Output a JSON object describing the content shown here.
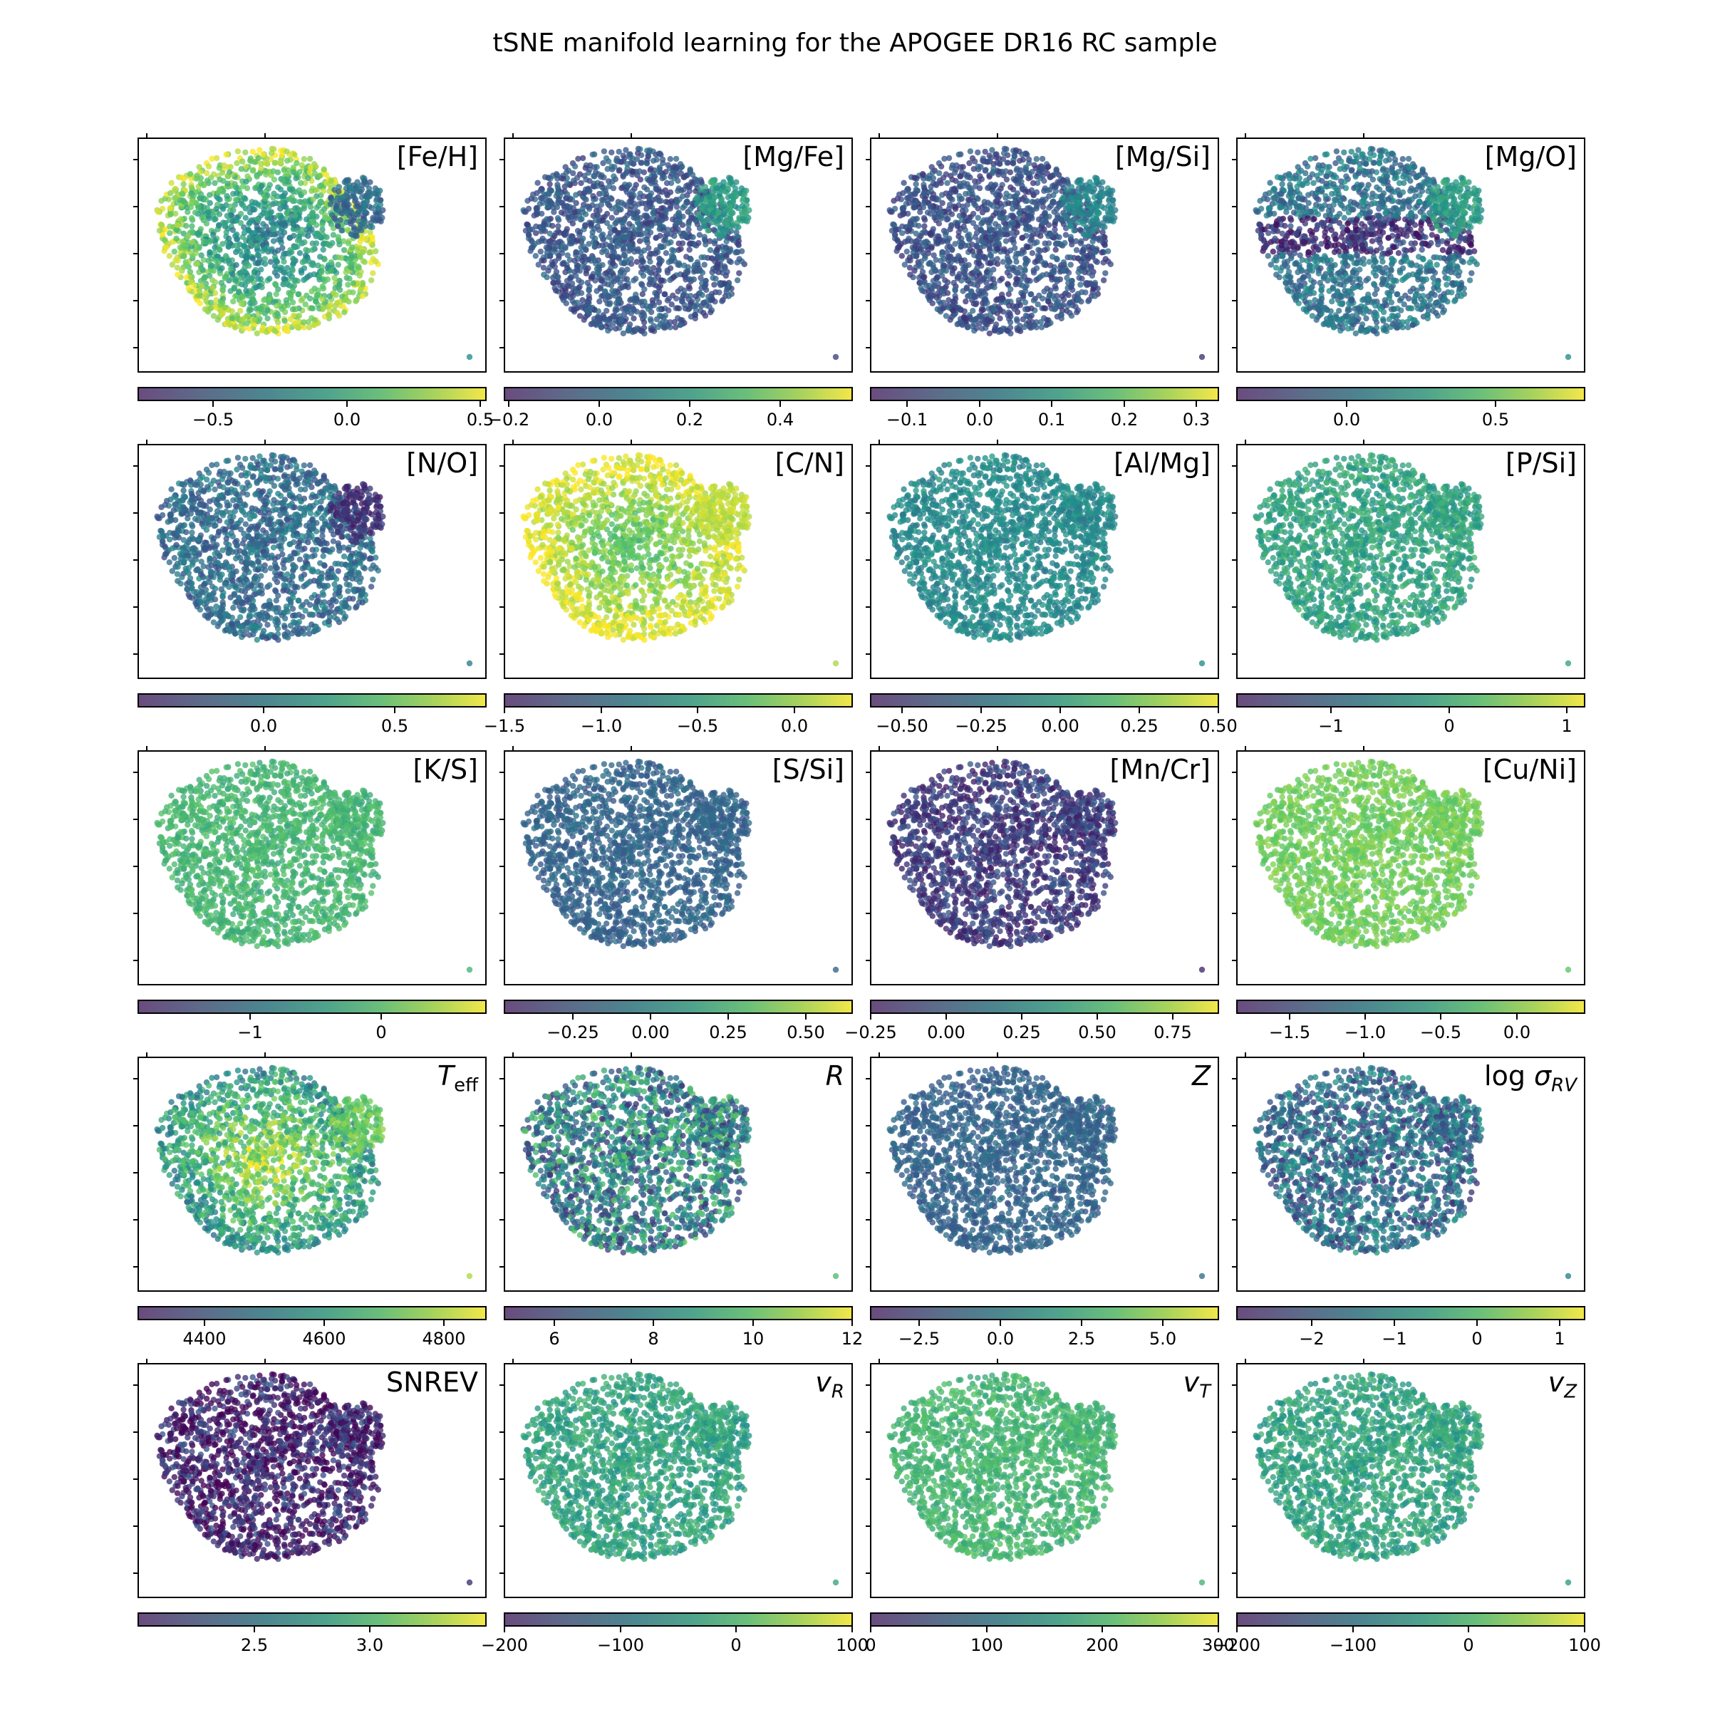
{
  "figure": {
    "title": "tSNE manifold learning for the APOGEE DR16 RC sample"
  },
  "colormap": [
    "#440154",
    "#3b528b",
    "#21918c",
    "#5ec962",
    "#fde725"
  ],
  "chart_data": [
    {
      "type": "scatter",
      "label": "[Fe/H]",
      "label_parts": [
        {
          "t": "[Fe/H]"
        }
      ],
      "colorbar": {
        "min": -0.78,
        "max": 0.52,
        "ticks": [
          "−0.5",
          "0.0",
          "0.5"
        ],
        "tick_values": [
          -0.5,
          0.0,
          0.5
        ]
      },
      "pattern": "ring-high"
    },
    {
      "type": "scatter",
      "label": "[Mg/Fe]",
      "label_parts": [
        {
          "t": "[Mg/Fe]"
        }
      ],
      "colorbar": {
        "min": -0.21,
        "max": 0.56,
        "ticks": [
          "−0.2",
          "0.0",
          "0.2",
          "0.4"
        ],
        "tick_values": [
          -0.2,
          0.0,
          0.2,
          0.4
        ]
      },
      "pattern": "low-arm-high"
    },
    {
      "type": "scatter",
      "label": "[Mg/Si]",
      "label_parts": [
        {
          "t": "[Mg/Si]"
        }
      ],
      "colorbar": {
        "min": -0.15,
        "max": 0.33,
        "ticks": [
          "−0.1",
          "0.0",
          "0.1",
          "0.2",
          "0.3"
        ],
        "tick_values": [
          -0.1,
          0.0,
          0.1,
          0.2,
          0.3
        ]
      },
      "pattern": "low-arm-mid"
    },
    {
      "type": "scatter",
      "label": "[Mg/O]",
      "label_parts": [
        {
          "t": "[Mg/O]"
        }
      ],
      "colorbar": {
        "min": -0.37,
        "max": 0.8,
        "ticks": [
          "0.0",
          "0.5"
        ],
        "tick_values": [
          0.0,
          0.5
        ]
      },
      "pattern": "lowband"
    },
    {
      "type": "scatter",
      "label": "[N/O]",
      "label_parts": [
        {
          "t": "[N/O]"
        }
      ],
      "colorbar": {
        "min": -0.48,
        "max": 0.85,
        "ticks": [
          "0.0",
          "0.5"
        ],
        "tick_values": [
          0.0,
          0.5
        ]
      },
      "pattern": "low-arm-low"
    },
    {
      "type": "scatter",
      "label": "[C/N]",
      "label_parts": [
        {
          "t": "[C/N]"
        }
      ],
      "colorbar": {
        "min": -1.5,
        "max": 0.3,
        "ticks": [
          "−1.5",
          "−1.0",
          "−0.5",
          "0.0"
        ],
        "tick_values": [
          -1.5,
          -1.0,
          -0.5,
          0.0
        ]
      },
      "pattern": "ring-high-bright"
    },
    {
      "type": "scatter",
      "label": "[Al/Mg]",
      "label_parts": [
        {
          "t": "[Al/Mg]"
        }
      ],
      "colorbar": {
        "min": -0.6,
        "max": 0.5,
        "ticks": [
          "−0.50",
          "−0.25",
          "0.00",
          "0.25",
          "0.50"
        ],
        "tick_values": [
          -0.5,
          -0.25,
          0.0,
          0.25,
          0.5
        ]
      },
      "pattern": "uniform-mid"
    },
    {
      "type": "scatter",
      "label": "[P/Si]",
      "label_parts": [
        {
          "t": "[P/Si]"
        }
      ],
      "colorbar": {
        "min": -1.8,
        "max": 1.15,
        "ticks": [
          "−1",
          "0",
          "1"
        ],
        "tick_values": [
          -1,
          0,
          1
        ]
      },
      "pattern": "uniform-midhigh"
    },
    {
      "type": "scatter",
      "label": "[K/S]",
      "label_parts": [
        {
          "t": "[K/S]"
        }
      ],
      "colorbar": {
        "min": -1.85,
        "max": 0.8,
        "ticks": [
          "−1",
          "0"
        ],
        "tick_values": [
          -1,
          0
        ]
      },
      "pattern": "uniform-high"
    },
    {
      "type": "scatter",
      "label": "[S/Si]",
      "label_parts": [
        {
          "t": "[S/Si]"
        }
      ],
      "colorbar": {
        "min": -0.47,
        "max": 0.65,
        "ticks": [
          "−0.25",
          "0.00",
          "0.25",
          "0.50"
        ],
        "tick_values": [
          -0.25,
          0.0,
          0.25,
          0.5
        ]
      },
      "pattern": "uniform-low"
    },
    {
      "type": "scatter",
      "label": "[Mn/Cr]",
      "label_parts": [
        {
          "t": "[Mn/Cr]"
        }
      ],
      "colorbar": {
        "min": -0.25,
        "max": 0.9,
        "ticks": [
          "−0.25",
          "0.00",
          "0.25",
          "0.50",
          "0.75"
        ],
        "tick_values": [
          -0.25,
          0.0,
          0.25,
          0.5,
          0.75
        ]
      },
      "pattern": "uniform-vlow"
    },
    {
      "type": "scatter",
      "label": "[Cu/Ni]",
      "label_parts": [
        {
          "t": "[Cu/Ni]"
        }
      ],
      "colorbar": {
        "min": -1.85,
        "max": 0.45,
        "ticks": [
          "−1.5",
          "−1.0",
          "−0.5",
          "0.0"
        ],
        "tick_values": [
          -1.5,
          -1.0,
          -0.5,
          0.0
        ]
      },
      "pattern": "uniform-vhigh"
    },
    {
      "type": "scatter",
      "label": "Teff",
      "label_parts": [
        {
          "t": "T",
          "it": true
        },
        {
          "t": "eff",
          "sub": true
        }
      ],
      "colorbar": {
        "min": 4290,
        "max": 4870,
        "ticks": [
          "4400",
          "4600",
          "4800"
        ],
        "tick_values": [
          4400,
          4600,
          4800
        ]
      },
      "pattern": "center-high"
    },
    {
      "type": "scatter",
      "label": "R",
      "label_parts": [
        {
          "t": "R",
          "it": true
        }
      ],
      "colorbar": {
        "min": 5,
        "max": 12,
        "ticks": [
          "6",
          "8",
          "10",
          "12"
        ],
        "tick_values": [
          6,
          8,
          10,
          12
        ]
      },
      "pattern": "noisy-mid"
    },
    {
      "type": "scatter",
      "label": "Z",
      "label_parts": [
        {
          "t": "Z",
          "it": true
        }
      ],
      "colorbar": {
        "min": -4.0,
        "max": 6.7,
        "ticks": [
          "−2.5",
          "0.0",
          "2.5",
          "5.0"
        ],
        "tick_values": [
          -2.5,
          0.0,
          2.5,
          5.0
        ]
      },
      "pattern": "uniform-low"
    },
    {
      "type": "scatter",
      "label": "log σRV",
      "label_parts": [
        {
          "t": "log "
        },
        {
          "t": "σ",
          "it": true
        },
        {
          "t": "RV",
          "it": true,
          "sub": true
        }
      ],
      "colorbar": {
        "min": -2.9,
        "max": 1.3,
        "ticks": [
          "−2",
          "−1",
          "0",
          "1"
        ],
        "tick_values": [
          -2,
          -1,
          0,
          1
        ]
      },
      "pattern": "noisy-low"
    },
    {
      "type": "scatter",
      "label": "SNREV",
      "label_parts": [
        {
          "t": "SNREV"
        }
      ],
      "colorbar": {
        "min": 2.0,
        "max": 3.5,
        "ticks": [
          "2.5",
          "3.0"
        ],
        "tick_values": [
          2.5,
          3.0
        ]
      },
      "pattern": "dark"
    },
    {
      "type": "scatter",
      "label": "vR",
      "label_parts": [
        {
          "t": "v",
          "it": true
        },
        {
          "t": "R",
          "it": true,
          "sub": true
        }
      ],
      "colorbar": {
        "min": -200,
        "max": 100,
        "ticks": [
          "−200",
          "−100",
          "0",
          "100"
        ],
        "tick_values": [
          -200,
          -100,
          0,
          100
        ]
      },
      "pattern": "uniform-midhigh"
    },
    {
      "type": "scatter",
      "label": "vT",
      "label_parts": [
        {
          "t": "v",
          "it": true
        },
        {
          "t": "T",
          "it": true,
          "sub": true
        }
      ],
      "colorbar": {
        "min": 0,
        "max": 300,
        "ticks": [
          "0",
          "100",
          "200",
          "300"
        ],
        "tick_values": [
          0,
          100,
          200,
          300
        ]
      },
      "pattern": "uniform-high"
    },
    {
      "type": "scatter",
      "label": "vZ",
      "label_parts": [
        {
          "t": "v",
          "it": true
        },
        {
          "t": "Z",
          "it": true,
          "sub": true
        }
      ],
      "colorbar": {
        "min": -200,
        "max": 100,
        "ticks": [
          "−200",
          "−100",
          "0",
          "100"
        ],
        "tick_values": [
          -200,
          -100,
          0,
          100
        ]
      },
      "pattern": "uniform-midhigh"
    }
  ]
}
